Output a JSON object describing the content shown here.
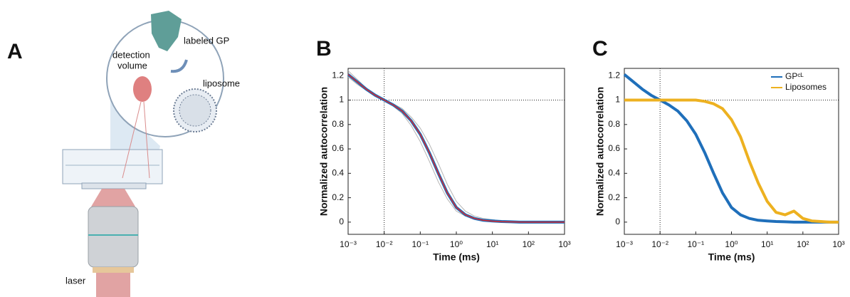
{
  "diagram": {
    "panel_label": "A",
    "labeled_gp": "labeled GP",
    "detection_volume": [
      "detection",
      "volume"
    ],
    "liposome": "liposome",
    "laser": "laser"
  },
  "chart_data": [
    {
      "type": "line",
      "panel_label": "B",
      "xlabel": "Time (ms)",
      "ylabel": "Normalized autocorrelation",
      "xscale": "log",
      "x": [
        0.001,
        0.00178,
        0.00316,
        0.00562,
        0.01,
        0.0178,
        0.0316,
        0.0562,
        0.1,
        0.178,
        0.316,
        0.562,
        1,
        1.78,
        3.16,
        5.62,
        10,
        17.8,
        31.6,
        56.2,
        100,
        178,
        316,
        562,
        1000
      ],
      "series": [
        {
          "color": "#b4b4b4",
          "width": 1,
          "values": [
            1.24,
            1.17,
            1.1,
            1.05,
            1,
            0.95,
            0.89,
            0.79,
            0.66,
            0.5,
            0.33,
            0.19,
            0.09,
            0.05,
            0.03,
            0.02,
            0.02,
            0.01,
            0.01,
            0,
            0,
            0,
            0,
            0,
            0
          ]
        },
        {
          "color": "#b4b4b4",
          "width": 1,
          "values": [
            1.19,
            1.13,
            1.08,
            1.03,
            1,
            0.97,
            0.93,
            0.86,
            0.77,
            0.64,
            0.48,
            0.31,
            0.17,
            0.09,
            0.05,
            0.03,
            0.02,
            0.01,
            0,
            0,
            0,
            0,
            0,
            0,
            0
          ]
        },
        {
          "color": "#1f6fba",
          "width": 4,
          "values": [
            1.21,
            1.15,
            1.09,
            1.04,
            1,
            0.96,
            0.91,
            0.83,
            0.72,
            0.57,
            0.4,
            0.24,
            0.12,
            0.06,
            0.03,
            0.015,
            0.01,
            0.005,
            0.003,
            0,
            0,
            0,
            0,
            0,
            0
          ]
        },
        {
          "color": "#d8262a",
          "width": 1.5,
          "values": [
            1.21,
            1.15,
            1.09,
            1.04,
            1,
            0.96,
            0.91,
            0.83,
            0.72,
            0.57,
            0.4,
            0.24,
            0.12,
            0.06,
            0.03,
            0.015,
            0.008,
            0.004,
            0.002,
            0.001,
            0,
            0,
            0,
            0,
            0
          ]
        }
      ],
      "xlim": [
        0.001,
        1000
      ],
      "ylim": [
        -0.1,
        1.26
      ],
      "xticks": [
        {
          "value": 0.001,
          "label": "10⁻³"
        },
        {
          "value": 0.01,
          "label": "10⁻²"
        },
        {
          "value": 0.1,
          "label": "10⁻¹"
        },
        {
          "value": 1,
          "label": "10⁰"
        },
        {
          "value": 10,
          "label": "10¹"
        },
        {
          "value": 100,
          "label": "10²"
        },
        {
          "value": 1000,
          "label": "10³"
        }
      ],
      "yticks": [
        0,
        0.2,
        0.4,
        0.6,
        0.8,
        1,
        1.2
      ],
      "ref_x": 0.01,
      "ref_y": 1
    },
    {
      "type": "line",
      "panel_label": "C",
      "xlabel": "Time (ms)",
      "ylabel": "Normalized autocorrelation",
      "xscale": "log",
      "legend": "upper right",
      "x": [
        0.001,
        0.00178,
        0.00316,
        0.00562,
        0.01,
        0.0178,
        0.0316,
        0.0562,
        0.1,
        0.178,
        0.316,
        0.562,
        1,
        1.78,
        3.16,
        5.62,
        10,
        17.8,
        31.6,
        56.2,
        100,
        178,
        316,
        562,
        1000
      ],
      "series": [
        {
          "name": "GPᶜᴸ",
          "color": "#1f6fba",
          "width": 4,
          "values": [
            1.21,
            1.15,
            1.09,
            1.04,
            1,
            0.96,
            0.91,
            0.83,
            0.72,
            0.57,
            0.4,
            0.24,
            0.12,
            0.06,
            0.03,
            0.015,
            0.01,
            0.005,
            0.003,
            0,
            0,
            0,
            0,
            0,
            0
          ]
        },
        {
          "name": "Liposomes",
          "color": "#edb120",
          "width": 4,
          "values": [
            1,
            1,
            1,
            1,
            1,
            1,
            1,
            1,
            1,
            0.99,
            0.97,
            0.93,
            0.84,
            0.7,
            0.5,
            0.32,
            0.17,
            0.08,
            0.06,
            0.09,
            0.03,
            0.01,
            0.005,
            0,
            0
          ]
        }
      ],
      "xlim": [
        0.001,
        1000
      ],
      "ylim": [
        -0.1,
        1.26
      ],
      "xticks": [
        {
          "value": 0.001,
          "label": "10⁻³"
        },
        {
          "value": 0.01,
          "label": "10⁻²"
        },
        {
          "value": 0.1,
          "label": "10⁻¹"
        },
        {
          "value": 1,
          "label": "10⁰"
        },
        {
          "value": 10,
          "label": "10¹"
        },
        {
          "value": 100,
          "label": "10²"
        },
        {
          "value": 1000,
          "label": "10³"
        }
      ],
      "yticks": [
        0,
        0.2,
        0.4,
        0.6,
        0.8,
        1,
        1.2
      ],
      "ref_x": 0.01,
      "ref_y": 1
    }
  ]
}
